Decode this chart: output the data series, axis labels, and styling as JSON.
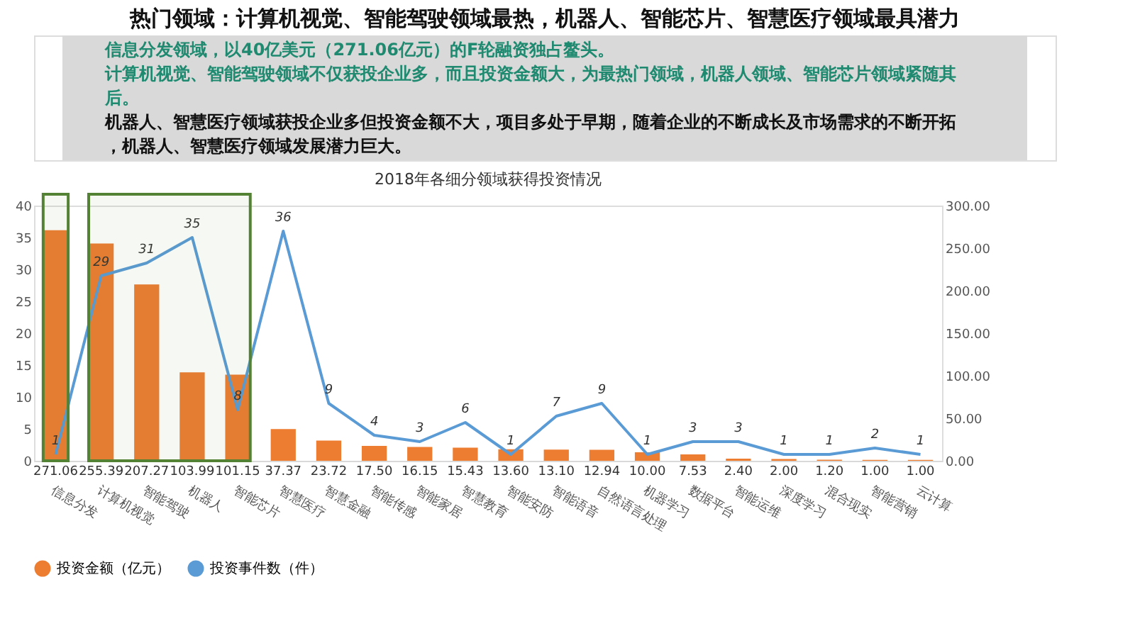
{
  "chart_data": {
    "type": "bar",
    "title": "热门领域：计算机视觉、智能驾驶领域最热，机器人、智能芯片、智慧医疗领域最具潜力",
    "subtitle": "2018年各细分领域获得投资情况",
    "annotations": [
      "信息分发领域，以40亿美元（271.06亿元）的F轮融资独占鳌头。",
      "计算机视觉、智能驾驶领域不仅获投企业多，而且投资金额大，为最热门领域，机器人领域、智能芯片领域紧随其后。",
      "机器人、智慧医疗领域获投企业多但投资金额不大，项目多处于早期，随着企业的不断成长及市场需求的不断开拓，机器人、智慧医疗领域发展潜力巨大。"
    ],
    "categories": [
      "信息分发",
      "计算机视觉",
      "智能驾驶",
      "机器人",
      "智能芯片",
      "智慧医疗",
      "智慧金融",
      "智能传感",
      "智能家居",
      "智慧教育",
      "智能安防",
      "智能语音",
      "自然语言处理",
      "机器学习",
      "数据平台",
      "智能运维",
      "深度学习",
      "混合现实",
      "智能营销",
      "云计算"
    ],
    "series": [
      {
        "name": "投资金额（亿元）",
        "type": "bar",
        "axis": "y2",
        "color": "#ed7d31",
        "values": [
          271.06,
          255.39,
          207.27,
          103.99,
          101.15,
          37.37,
          23.72,
          17.5,
          16.15,
          15.43,
          13.6,
          13.1,
          12.94,
          10.0,
          7.53,
          2.4,
          2.0,
          1.2,
          1.0,
          1.0
        ],
        "value_labels": [
          "271.06",
          "255.39",
          "207.27",
          "103.99",
          "101.15",
          "37.37",
          "23.72",
          "17.50",
          "16.15",
          "15.43",
          "13.60",
          "13.10",
          "12.94",
          "10.00",
          "7.53",
          "2.40",
          "2.00",
          "1.20",
          "1.00",
          "1.00"
        ]
      },
      {
        "name": "投资事件数（件）",
        "type": "line",
        "color": "#5b9bd5",
        "values": [
          1,
          29,
          31,
          35,
          8,
          36,
          9,
          4,
          3,
          6,
          1,
          7,
          9,
          1,
          3,
          3,
          1,
          1,
          2,
          1
        ],
        "value_labels": [
          "1",
          "29",
          "31",
          "35",
          "8",
          "36",
          "9",
          "4",
          "3",
          "6",
          "1",
          "7",
          "9",
          "1",
          "3",
          "3",
          "1",
          "1",
          "2",
          "1"
        ]
      }
    ],
    "ylim": [
      0,
      40
    ],
    "yticks": [
      0,
      5,
      10,
      15,
      20,
      25,
      30,
      35,
      40
    ],
    "y2lim": [
      0,
      300
    ],
    "y2ticks": [
      {
        "value": 0,
        "label": "0.00"
      },
      {
        "value": 50,
        "label": "50.00"
      },
      {
        "value": 100,
        "label": "100.00"
      },
      {
        "value": 150,
        "label": "150.00"
      },
      {
        "value": 200,
        "label": "200.00"
      },
      {
        "value": 250,
        "label": "250.00"
      },
      {
        "value": 300,
        "label": "300.00"
      }
    ],
    "bands": [
      {
        "axis": "x",
        "from": "信息分发",
        "to": "信息分发",
        "color": "#548235"
      },
      {
        "axis": "x",
        "from": "计算机视觉",
        "to": "智能芯片",
        "color": "#548235"
      }
    ],
    "grid": false,
    "legend": "bottom",
    "marker": "none",
    "line_style": "solid"
  }
}
